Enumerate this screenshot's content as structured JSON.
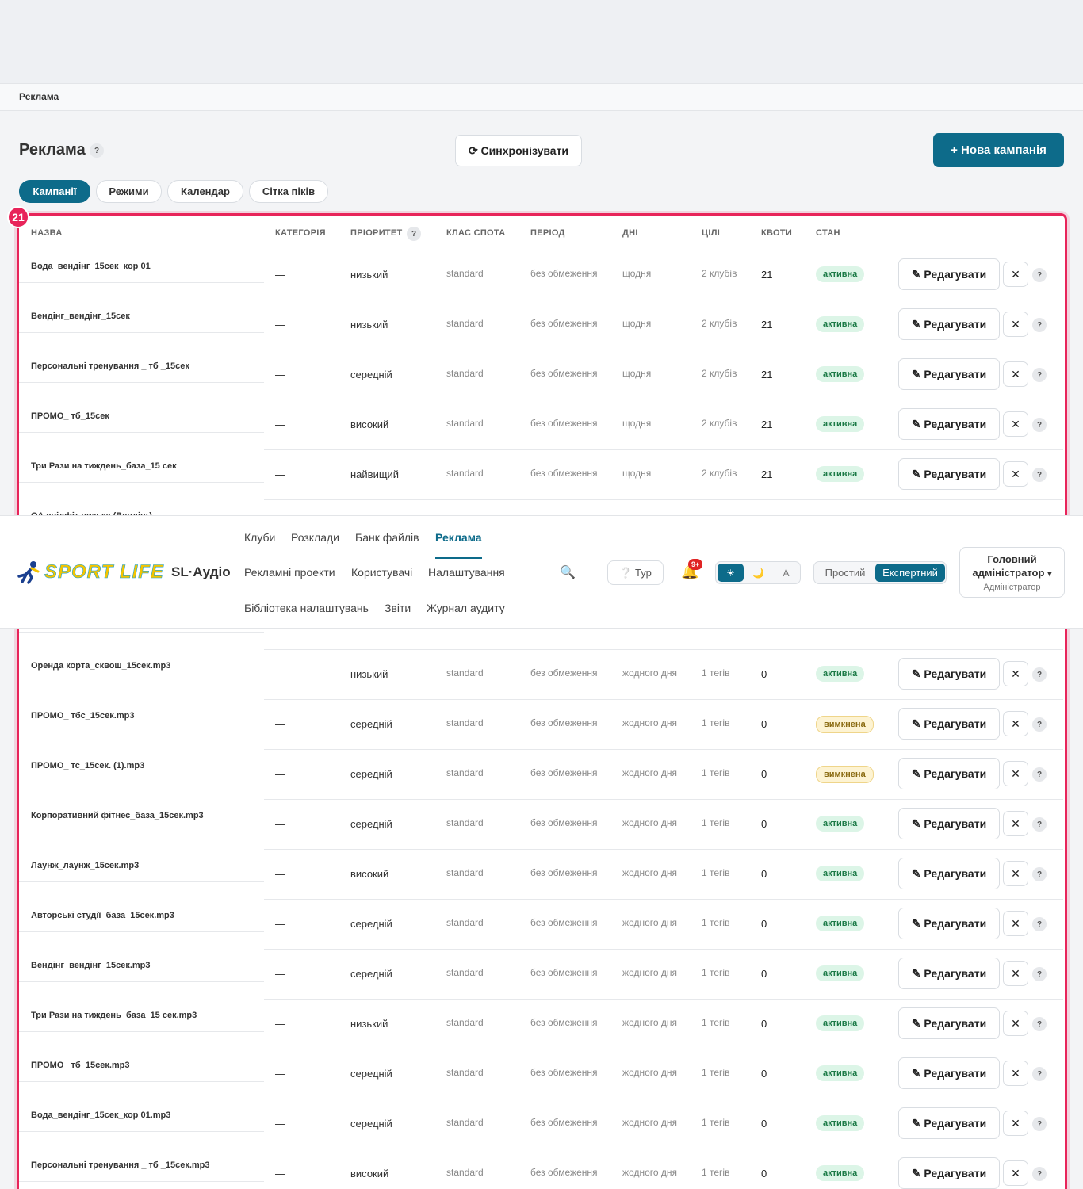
{
  "breadcrumb": "Реклама",
  "page": {
    "title": "Реклама",
    "help": "?",
    "sync": "⟳ Синхронізувати",
    "new_campaign": "+ Нова кампанія"
  },
  "tabs": {
    "items": [
      "Кампанії",
      "Режими",
      "Календар",
      "Сітка піків"
    ],
    "active": 0
  },
  "badge": "21",
  "table": {
    "columns": [
      "НАЗВА",
      "КАТЕГОРІЯ",
      "ПРІОРИТЕТ",
      "КЛАС СПОТА",
      "ПЕРІОД",
      "ДНІ",
      "ЦІЛІ",
      "КВОТИ",
      "СТАН"
    ],
    "priority_help": "?",
    "rows": [
      {
        "name": "Вода_вендінг_15сек_кор 01",
        "category": "—",
        "priority": "низький",
        "spot_class": "standard",
        "period": "без обмеження",
        "days": "щодня",
        "targets": "2 клубів",
        "quota": 21,
        "status": "активна",
        "edit": "✎ Редагувати",
        "delete": "✕",
        "help": "?"
      },
      {
        "name": "Вендінг_вендінг_15сек",
        "category": "—",
        "priority": "низький",
        "spot_class": "standard",
        "period": "без обмеження",
        "days": "щодня",
        "targets": "2 клубів",
        "quota": 21,
        "status": "активна",
        "edit": "✎ Редагувати",
        "delete": "✕",
        "help": "?"
      },
      {
        "name": "Персональні тренування _ тб _15сек",
        "category": "—",
        "priority": "середній",
        "spot_class": "standard",
        "period": "без обмеження",
        "days": "щодня",
        "targets": "2 клубів",
        "quota": 21,
        "status": "активна",
        "edit": "✎ Редагувати",
        "delete": "✕",
        "help": "?"
      },
      {
        "name": "ПРОМО_ тб_15сек",
        "category": "—",
        "priority": "високий",
        "spot_class": "standard",
        "period": "без обмеження",
        "days": "щодня",
        "targets": "2 клубів",
        "quota": 21,
        "status": "активна",
        "edit": "✎ Редагувати",
        "delete": "✕",
        "help": "?"
      },
      {
        "name": "Три Рази на тиждень_база_15 сек",
        "category": "—",
        "priority": "найвищий",
        "spot_class": "standard",
        "period": "без обмеження",
        "days": "щодня",
        "targets": "2 клубів",
        "quota": 21,
        "status": "активна",
        "edit": "✎ Редагувати",
        "delete": "✕",
        "help": "?"
      }
    ],
    "partial_row_name": "ОА свідфіт низька (Вендінг)",
    "rows_after": [
      {
        "name": "Оренда корта_сквош_15сек.mp3",
        "category": "—",
        "priority": "низький",
        "spot_class": "standard",
        "period": "без обмеження",
        "days": "жодного дня",
        "targets": "1 тегів",
        "quota": 0,
        "status": "активна",
        "edit": "✎ Редагувати",
        "delete": "✕",
        "help": "?"
      },
      {
        "name": "ПРОМО_ тбс_15сек.mp3",
        "category": "—",
        "priority": "середній",
        "spot_class": "standard",
        "period": "без обмеження",
        "days": "жодного дня",
        "targets": "1 тегів",
        "quota": 0,
        "status": "вимкнена",
        "edit": "✎ Редагувати",
        "delete": "✕",
        "help": "?"
      },
      {
        "name": "ПРОМО_ тс_15сек. (1).mp3",
        "category": "—",
        "priority": "середній",
        "spot_class": "standard",
        "period": "без обмеження",
        "days": "жодного дня",
        "targets": "1 тегів",
        "quota": 0,
        "status": "вимкнена",
        "edit": "✎ Редагувати",
        "delete": "✕",
        "help": "?"
      },
      {
        "name": "Корпоративний фітнес_база_15сек.mp3",
        "category": "—",
        "priority": "середній",
        "spot_class": "standard",
        "period": "без обмеження",
        "days": "жодного дня",
        "targets": "1 тегів",
        "quota": 0,
        "status": "активна",
        "edit": "✎ Редагувати",
        "delete": "✕",
        "help": "?"
      },
      {
        "name": "Лаунж_лаунж_15сек.mp3",
        "category": "—",
        "priority": "високий",
        "spot_class": "standard",
        "period": "без обмеження",
        "days": "жодного дня",
        "targets": "1 тегів",
        "quota": 0,
        "status": "активна",
        "edit": "✎ Редагувати",
        "delete": "✕",
        "help": "?"
      },
      {
        "name": "Авторські студії_база_15сек.mp3",
        "category": "—",
        "priority": "середній",
        "spot_class": "standard",
        "period": "без обмеження",
        "days": "жодного дня",
        "targets": "1 тегів",
        "quota": 0,
        "status": "активна",
        "edit": "✎ Редагувати",
        "delete": "✕",
        "help": "?"
      },
      {
        "name": "Вендінг_вендінг_15сек.mp3",
        "category": "—",
        "priority": "середній",
        "spot_class": "standard",
        "period": "без обмеження",
        "days": "жодного дня",
        "targets": "1 тегів",
        "quota": 0,
        "status": "активна",
        "edit": "✎ Редагувати",
        "delete": "✕",
        "help": "?"
      },
      {
        "name": "Три Рази на тиждень_база_15 сек.mp3",
        "category": "—",
        "priority": "низький",
        "spot_class": "standard",
        "period": "без обмеження",
        "days": "жодного дня",
        "targets": "1 тегів",
        "quota": 0,
        "status": "активна",
        "edit": "✎ Редагувати",
        "delete": "✕",
        "help": "?"
      },
      {
        "name": "ПРОМО_ тб_15сек.mp3",
        "category": "—",
        "priority": "середній",
        "spot_class": "standard",
        "period": "без обмеження",
        "days": "жодного дня",
        "targets": "1 тегів",
        "quota": 0,
        "status": "активна",
        "edit": "✎ Редагувати",
        "delete": "✕",
        "help": "?"
      },
      {
        "name": "Вода_вендінг_15сек_кор 01.mp3",
        "category": "—",
        "priority": "середній",
        "spot_class": "standard",
        "period": "без обмеження",
        "days": "жодного дня",
        "targets": "1 тегів",
        "quota": 0,
        "status": "активна",
        "edit": "✎ Редагувати",
        "delete": "✕",
        "help": "?"
      },
      {
        "name": "Персональні тренування _ тб _15сек.mp3",
        "category": "—",
        "priority": "високий",
        "spot_class": "standard",
        "period": "без обмеження",
        "days": "жодного дня",
        "targets": "1 тегів",
        "quota": 0,
        "status": "активна",
        "edit": "✎ Редагувати",
        "delete": "✕",
        "help": "?"
      }
    ]
  },
  "nav": {
    "logo": "SPORT LIFE",
    "app": "SL·Аудіо",
    "links": [
      [
        "Клуби",
        "Розклади",
        "Банк файлів",
        "Реклама"
      ],
      [
        "Рекламні проекти",
        "Користувачі",
        "Налаштування"
      ],
      [
        "Бібліотека налаштувань",
        "Звіти",
        "Журнал аудиту"
      ]
    ],
    "active_link": [
      0,
      3
    ],
    "search": "🔍",
    "tour": "❔ Тур",
    "bell": "🔔",
    "notifications": "9+",
    "theme": {
      "items": [
        "☀",
        "🌙",
        "A"
      ],
      "active": 0
    },
    "modes": {
      "items": [
        "Простий",
        "Експертний"
      ],
      "active": 1
    },
    "user": {
      "name": "Головний адміністратор",
      "caret": "▾",
      "role": "Адміністратор"
    }
  }
}
